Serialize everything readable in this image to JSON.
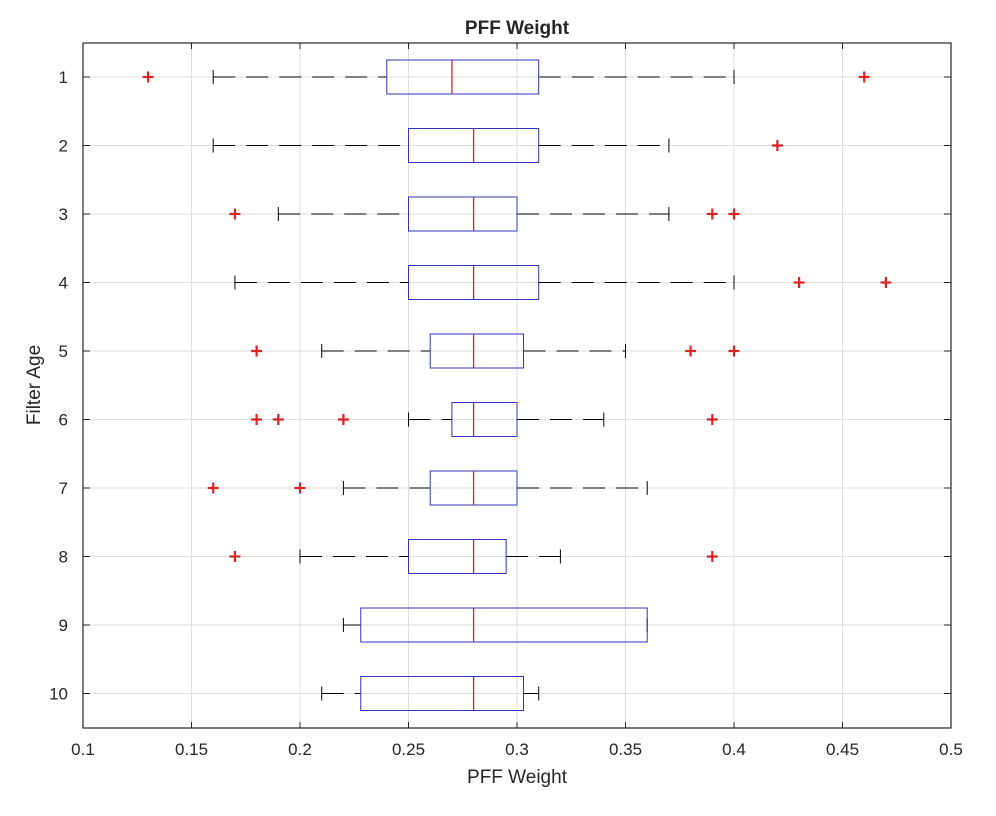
{
  "chart_data": {
    "type": "boxplot",
    "orientation": "horizontal",
    "title": "PFF Weight",
    "xlabel": "PFF Weight",
    "ylabel": "Filter Age",
    "xlim": [
      0.1,
      0.5
    ],
    "xticks": [
      0.1,
      0.15,
      0.2,
      0.25,
      0.3,
      0.35,
      0.4,
      0.45,
      0.5
    ],
    "xtick_labels": [
      "0.1",
      "0.15",
      "0.2",
      "0.25",
      "0.3",
      "0.35",
      "0.4",
      "0.45",
      "0.5"
    ],
    "grid": true,
    "colors": {
      "box": "#3333bb",
      "median": "#dd2222",
      "whisker": "#000000",
      "outlier": "#dd2222",
      "grid": "#dddddd"
    },
    "groups": [
      {
        "label": "1",
        "whisker_low": 0.16,
        "q1": 0.24,
        "median": 0.27,
        "q3": 0.31,
        "whisker_high": 0.4,
        "outliers": [
          0.13,
          0.46
        ]
      },
      {
        "label": "2",
        "whisker_low": 0.16,
        "q1": 0.25,
        "median": 0.28,
        "q3": 0.31,
        "whisker_high": 0.37,
        "outliers": [
          0.42
        ]
      },
      {
        "label": "3",
        "whisker_low": 0.19,
        "q1": 0.25,
        "median": 0.28,
        "q3": 0.3,
        "whisker_high": 0.37,
        "outliers": [
          0.17,
          0.39,
          0.4
        ]
      },
      {
        "label": "4",
        "whisker_low": 0.17,
        "q1": 0.25,
        "median": 0.28,
        "q3": 0.31,
        "whisker_high": 0.4,
        "outliers": [
          0.43,
          0.47
        ]
      },
      {
        "label": "5",
        "whisker_low": 0.21,
        "q1": 0.26,
        "median": 0.28,
        "q3": 0.303,
        "whisker_high": 0.35,
        "outliers": [
          0.18,
          0.38,
          0.4
        ]
      },
      {
        "label": "6",
        "whisker_low": 0.25,
        "q1": 0.27,
        "median": 0.28,
        "q3": 0.3,
        "whisker_high": 0.34,
        "outliers": [
          0.18,
          0.19,
          0.22,
          0.39
        ]
      },
      {
        "label": "7",
        "whisker_low": 0.22,
        "q1": 0.26,
        "median": 0.28,
        "q3": 0.3,
        "whisker_high": 0.36,
        "outliers": [
          0.16,
          0.2
        ]
      },
      {
        "label": "8",
        "whisker_low": 0.2,
        "q1": 0.25,
        "median": 0.28,
        "q3": 0.295,
        "whisker_high": 0.32,
        "outliers": [
          0.17,
          0.39
        ]
      },
      {
        "label": "9",
        "whisker_low": 0.22,
        "q1": 0.228,
        "median": 0.28,
        "q3": 0.36,
        "whisker_high": 0.36,
        "outliers": []
      },
      {
        "label": "10",
        "whisker_low": 0.21,
        "q1": 0.228,
        "median": 0.28,
        "q3": 0.303,
        "whisker_high": 0.31,
        "outliers": []
      }
    ]
  }
}
